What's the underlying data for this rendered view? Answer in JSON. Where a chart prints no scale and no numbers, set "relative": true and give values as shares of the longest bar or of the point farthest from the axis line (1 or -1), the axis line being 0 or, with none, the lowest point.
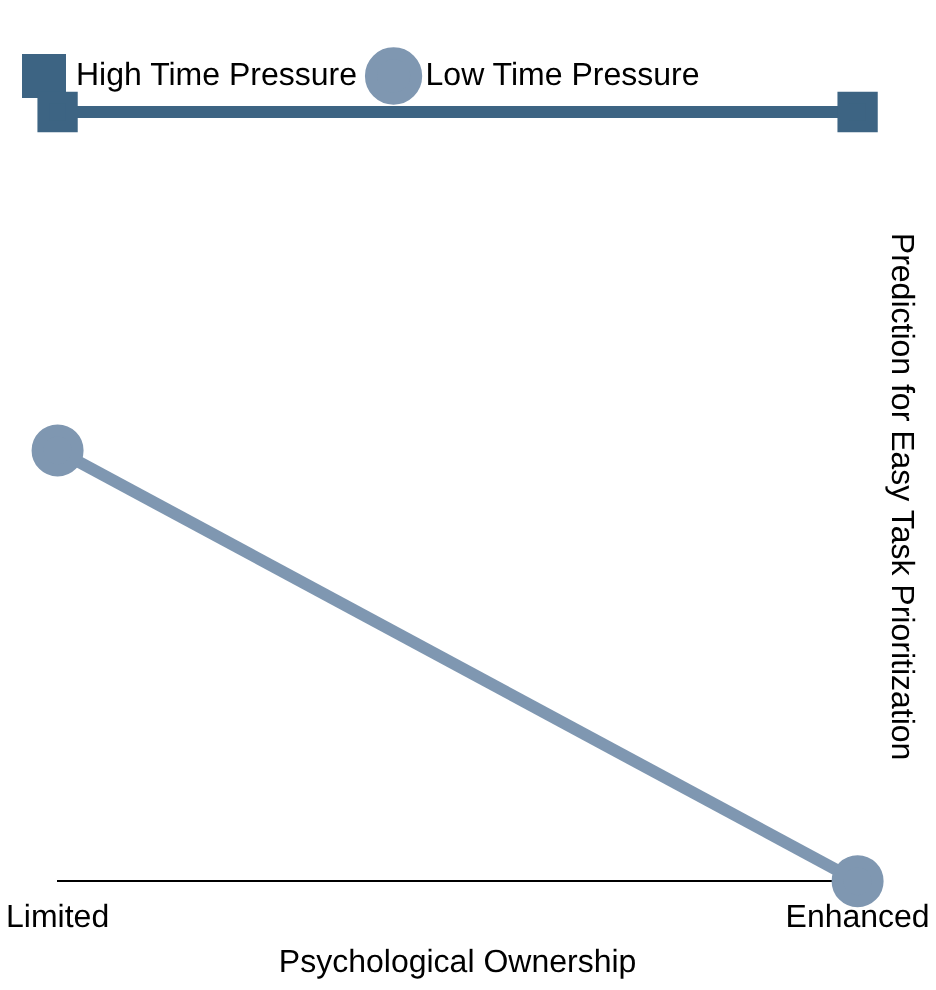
{
  "chart_data": {
    "type": "line",
    "relative": true,
    "xlabel": "Psychological Ownership",
    "ylabel": "Prediction for Easy Task Prioritization",
    "categories": [
      "Limited",
      "Enhanced"
    ],
    "series": [
      {
        "name": "High Time Pressure",
        "color": "#3d6483",
        "values": [
          1,
          1
        ],
        "marker": "square"
      },
      {
        "name": "Low Time Pressure",
        "color": "#7f97b1",
        "values": [
          0.56,
          0
        ],
        "marker": "circle"
      }
    ],
    "legend": "top left",
    "grid": false,
    "line_style": "solid"
  }
}
